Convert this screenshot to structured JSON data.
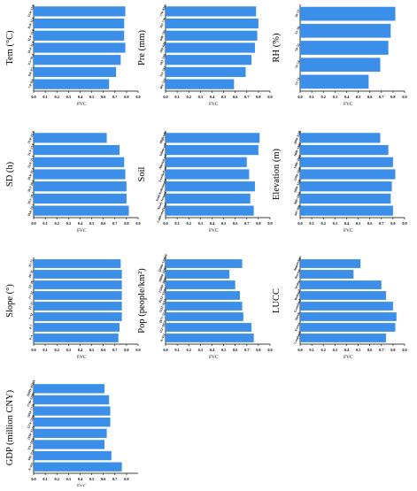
{
  "bar_color": "#3b8fe8",
  "chart_data": [
    {
      "type": "bar",
      "orientation": "horizontal",
      "ylabel": "Tem (°C)",
      "xlabel": "FVC",
      "xlim": [
        0,
        0.9
      ],
      "xticks": [
        "0.0",
        "0.1",
        "0.2",
        "0.3",
        "0.4",
        "0.5",
        "0.6",
        "0.7",
        "0.8",
        "0.9"
      ],
      "categories": [
        "7.0~8.8",
        "8.8~9.5",
        "9.5~10.4",
        "10.4~11.0",
        "11.0~11.8",
        "11.8~12.6",
        "12.6~13.6"
      ],
      "values": [
        0.65,
        0.71,
        0.75,
        0.79,
        0.78,
        0.78,
        0.79
      ]
    },
    {
      "type": "bar",
      "orientation": "horizontal",
      "ylabel": "Pre (mm)",
      "xlabel": "FVC",
      "xlim": [
        0,
        0.9
      ],
      "xticks": [
        "0.0",
        "0.1",
        "0.2",
        "0.3",
        "0.4",
        "0.5",
        "0.6",
        "0.7",
        "0.8",
        "0.9"
      ],
      "categories": [
        "401~513",
        "513~561",
        "561~599",
        "599~648",
        "648~705",
        "705~776",
        "776~834"
      ],
      "values": [
        0.59,
        0.69,
        0.74,
        0.77,
        0.79,
        0.8,
        0.78
      ]
    },
    {
      "type": "bar",
      "orientation": "horizontal",
      "ylabel": "RH (%)",
      "xlabel": "FVC",
      "xlim": [
        0,
        0.9
      ],
      "xticks": [
        "0.0",
        "0.1",
        "0.2",
        "0.3",
        "0.4",
        "0.5",
        "0.6",
        "0.7",
        "0.8",
        "0.9"
      ],
      "categories": [
        "52~53",
        "53~54",
        "54~55",
        "55~56",
        "56~57"
      ],
      "values": [
        0.59,
        0.69,
        0.76,
        0.78,
        0.82
      ]
    },
    {
      "type": "bar",
      "orientation": "horizontal",
      "ylabel": "SD (h)",
      "xlabel": "FVC",
      "xlim": [
        0,
        0.9
      ],
      "xticks": [
        "0.0",
        "0.1",
        "0.2",
        "0.3",
        "0.4",
        "0.5",
        "0.6",
        "0.7",
        "0.8",
        "0.9"
      ],
      "categories": [
        "18.6~19.5",
        "19.5~20.1",
        "20.1~20.6",
        "20.6~21.0",
        "21.0~21.3",
        "21.3~21.6",
        "21.6~22.3"
      ],
      "values": [
        0.82,
        0.8,
        0.8,
        0.79,
        0.78,
        0.74,
        0.63
      ]
    },
    {
      "type": "bar",
      "orientation": "horizontal",
      "ylabel": "Soil",
      "xlabel": "FVC",
      "xlim": [
        0,
        0.9
      ],
      "xticks": [
        "0.0",
        "0.1",
        "0.2",
        "0.3",
        "0.4",
        "0.5",
        "0.6",
        "0.7",
        "0.8",
        "0.9"
      ],
      "categories": [
        "Cultivated land soil",
        "Newly formed soil",
        "Semi-hydromorphic soil",
        "Leached soil",
        "Alluvial soil",
        "Saline soil",
        "High-salt"
      ],
      "values": [
        0.76,
        0.73,
        0.77,
        0.72,
        0.7,
        0.8,
        0.81
      ]
    },
    {
      "type": "bar",
      "orientation": "horizontal",
      "ylabel": "Elevation (m)",
      "xlabel": "FVC",
      "xlim": [
        0,
        0.9
      ],
      "xticks": [
        "0.0",
        "0.1",
        "0.2",
        "0.3",
        "0.4",
        "0.5",
        "0.6",
        "0.7",
        "0.8",
        "0.9"
      ],
      "categories": [
        "447~800",
        "800~1000",
        "1000~1200",
        "1200~1400",
        "1400~1600",
        "1600~1800",
        "1800~2100"
      ],
      "values": [
        0.8,
        0.78,
        0.79,
        0.82,
        0.8,
        0.76,
        0.69
      ]
    },
    {
      "type": "bar",
      "orientation": "horizontal",
      "ylabel": "Slope (°)",
      "xlabel": "FVC",
      "xlim": [
        0,
        0.9
      ],
      "xticks": [
        "0.0",
        "0.1",
        "0.2",
        "0.3",
        "0.4",
        "0.5",
        "0.6",
        "0.7",
        "0.8",
        "0.9"
      ],
      "categories": [
        "0~4",
        "4~7",
        "7~12",
        "12~17",
        "17~22",
        "22~28",
        "28~35",
        "35~72"
      ],
      "values": [
        0.73,
        0.74,
        0.76,
        0.76,
        0.76,
        0.76,
        0.76,
        0.75
      ]
    },
    {
      "type": "bar",
      "orientation": "horizontal",
      "ylabel": "Pop (people/km²)",
      "xlabel": "FVC",
      "xlim": [
        0,
        0.9
      ],
      "xticks": [
        "0.0",
        "0.1",
        "0.2",
        "0.3",
        "0.4",
        "0.5",
        "0.6",
        "0.7",
        "0.8",
        "0.9"
      ],
      "categories": [
        "0~112",
        "112~2977",
        "2977~5522",
        "5522~9112",
        "9112~13200",
        "13200~18000",
        "18000~22000",
        "22000~132080"
      ],
      "values": [
        0.76,
        0.74,
        0.67,
        0.66,
        0.64,
        0.6,
        0.55,
        0.66
      ]
    },
    {
      "type": "bar",
      "orientation": "horizontal",
      "ylabel": "LUCC",
      "xlabel": "FVC",
      "xlim": [
        0,
        0.9
      ],
      "xticks": [
        "0.0",
        "0.1",
        "0.2",
        "0.3",
        "0.4",
        "0.5",
        "0.6",
        "0.7",
        "0.8",
        "0.9"
      ],
      "categories": [
        "Cropland",
        "Forest",
        "Shrub",
        "Grassland",
        "Wetland",
        "Water",
        "Barren",
        "Impervious"
      ],
      "values": [
        0.74,
        0.82,
        0.83,
        0.8,
        0.74,
        0.7,
        0.46,
        0.52
      ]
    },
    {
      "type": "bar",
      "orientation": "horizontal",
      "ylabel": "GDP (million CNY)",
      "xlabel": "FVC",
      "xlim": [
        0,
        0.9
      ],
      "xticks": [
        "0.0",
        "0.1",
        "0.2",
        "0.3",
        "0.4",
        "0.5",
        "0.6",
        "0.7",
        "0.8"
      ],
      "categories": [
        "0~101",
        "101~151",
        "151~1016",
        "1016~1574",
        "1574~5018",
        "5018~7716",
        "7716~21003",
        "21003~47216"
      ],
      "values": [
        0.76,
        0.67,
        0.61,
        0.63,
        0.66,
        0.66,
        0.65,
        0.61
      ]
    }
  ]
}
